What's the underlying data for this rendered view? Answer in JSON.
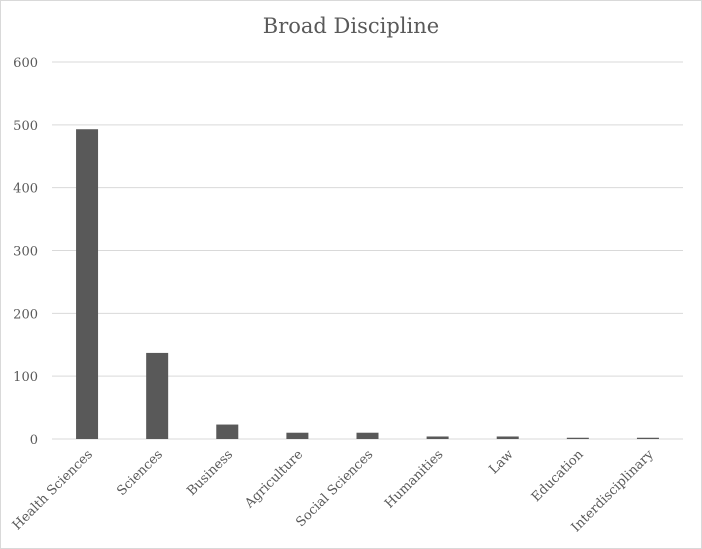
{
  "chart_data": {
    "type": "bar",
    "title": "Broad Discipline",
    "xlabel": "",
    "ylabel": "",
    "ylim": [
      0,
      600
    ],
    "yticks": [
      0,
      100,
      200,
      300,
      400,
      500,
      600
    ],
    "grid": true,
    "legend": "none",
    "categories": [
      "Health Sciences",
      "Sciences",
      "Business",
      "Agriculture",
      "Social Sciences",
      "Humanities",
      "Law",
      "Education",
      "Interdisciplinary"
    ],
    "values": [
      493,
      137,
      23,
      10,
      10,
      4,
      4,
      2,
      2
    ],
    "colors": {
      "bar": "#595959",
      "grid": "#d9d9d9",
      "text": "#595959"
    }
  }
}
